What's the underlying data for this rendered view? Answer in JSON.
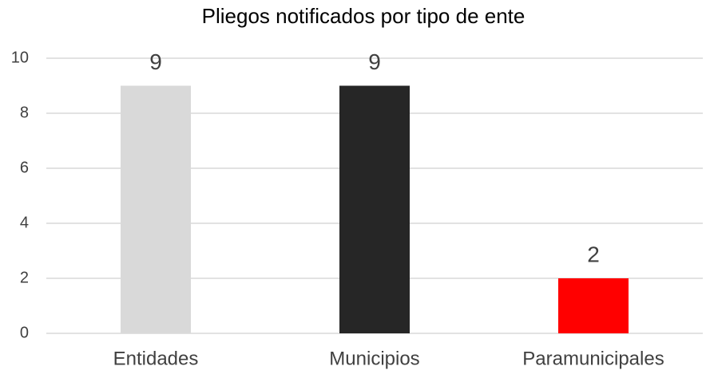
{
  "chart_data": {
    "type": "bar",
    "title": "Pliegos notificados por tipo de ente",
    "categories": [
      "Entidades",
      "Municipios",
      "Paramunicipales"
    ],
    "values": [
      9,
      9,
      2
    ],
    "colors": [
      "#d9d9d9",
      "#262626",
      "#ff0000"
    ],
    "ylim": [
      0,
      10
    ],
    "yticks": [
      0,
      2,
      4,
      6,
      8,
      10
    ],
    "grid": true
  }
}
